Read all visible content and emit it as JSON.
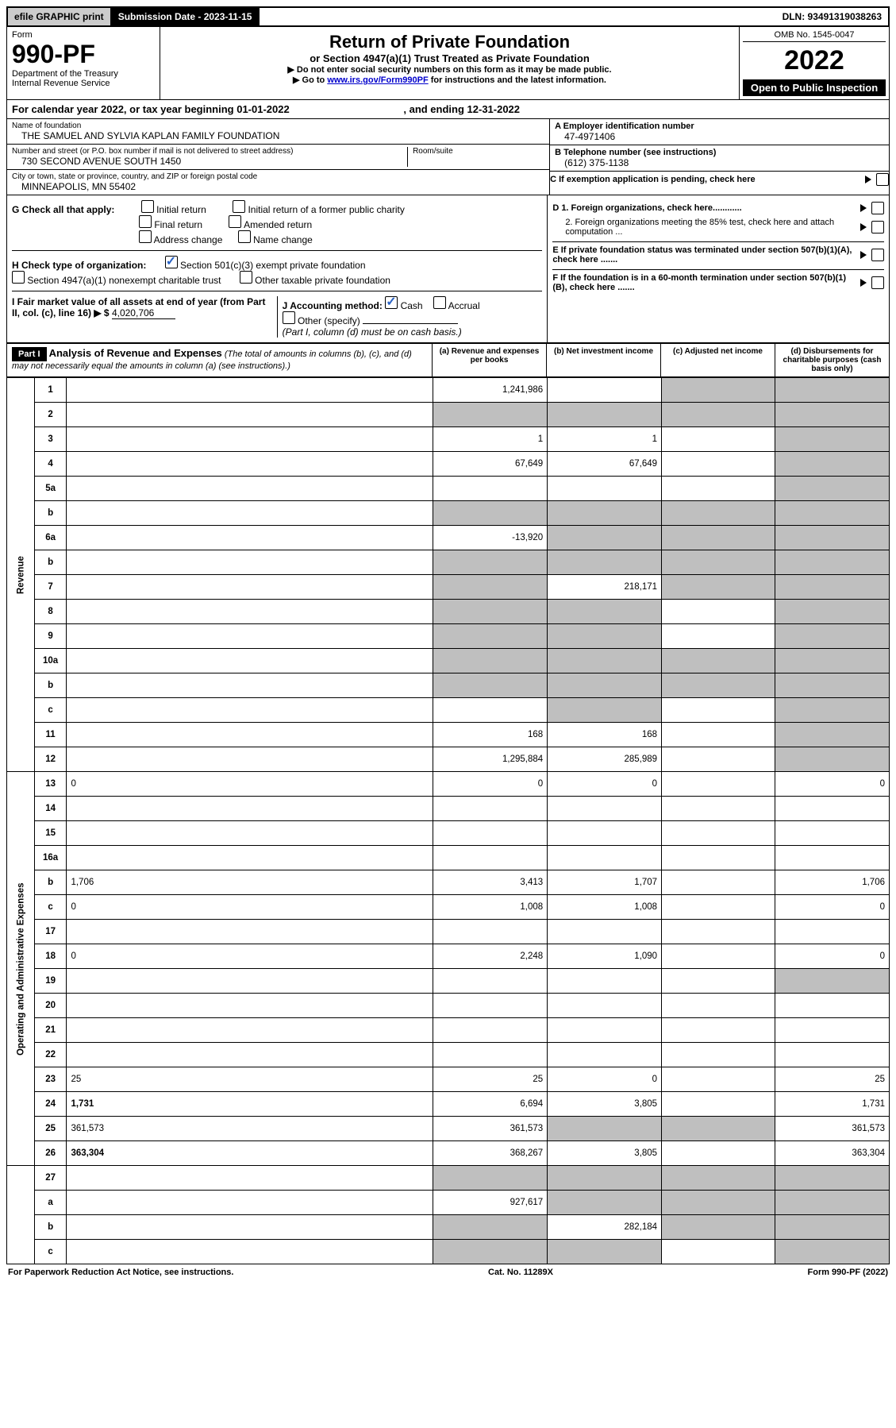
{
  "top": {
    "efile": "efile GRAPHIC print",
    "sub_label": "Submission Date - 2023-11-15",
    "dln": "DLN: 93491319038263"
  },
  "header": {
    "form_word": "Form",
    "form_no": "990-PF",
    "dept": "Department of the Treasury",
    "irs": "Internal Revenue Service",
    "title": "Return of Private Foundation",
    "subtitle": "or Section 4947(a)(1) Trust Treated as Private Foundation",
    "instr1": "▶ Do not enter social security numbers on this form as it may be made public.",
    "instr2_a": "▶ Go to ",
    "instr2_link": "www.irs.gov/Form990PF",
    "instr2_b": " for instructions and the latest information.",
    "omb": "OMB No. 1545-0047",
    "year": "2022",
    "open": "Open to Public Inspection"
  },
  "cal": {
    "text_a": "For calendar year 2022, or tax year beginning 01-01-2022",
    "text_b": ", and ending 12-31-2022"
  },
  "info": {
    "name_lbl": "Name of foundation",
    "name": "THE SAMUEL AND SYLVIA KAPLAN FAMILY FOUNDATION",
    "addr_lbl": "Number and street (or P.O. box number if mail is not delivered to street address)",
    "addr": "730 SECOND AVENUE SOUTH 1450",
    "room_lbl": "Room/suite",
    "city_lbl": "City or town, state or province, country, and ZIP or foreign postal code",
    "city": "MINNEAPOLIS, MN  55402",
    "ein_lbl": "A Employer identification number",
    "ein": "47-4971406",
    "tel_lbl": "B Telephone number (see instructions)",
    "tel": "(612) 375-1138",
    "c_lbl": "C If exemption application is pending, check here",
    "d1": "D 1. Foreign organizations, check here............",
    "d2": "2. Foreign organizations meeting the 85% test, check here and attach computation ...",
    "e_lbl": "E  If private foundation status was terminated under section 507(b)(1)(A), check here .......",
    "f_lbl": "F  If the foundation is in a 60-month termination under section 507(b)(1)(B), check here .......",
    "g_lbl": "G Check all that apply:",
    "g_opts": [
      "Initial return",
      "Initial return of a former public charity",
      "Final return",
      "Amended return",
      "Address change",
      "Name change"
    ],
    "h_lbl": "H Check type of organization:",
    "h1": "Section 501(c)(3) exempt private foundation",
    "h2": "Section 4947(a)(1) nonexempt charitable trust",
    "h3": "Other taxable private foundation",
    "i_lbl": "I Fair market value of all assets at end of year (from Part II, col. (c), line 16) ▶ $",
    "i_val": "4,020,706",
    "j_lbl": "J Accounting method:",
    "j_cash": "Cash",
    "j_acc": "Accrual",
    "j_other": "Other (specify)",
    "j_note": "(Part I, column (d) must be on cash basis.)"
  },
  "part1": {
    "label": "Part I",
    "title": "Analysis of Revenue and Expenses",
    "title_note": " (The total of amounts in columns (b), (c), and (d) may not necessarily equal the amounts in column (a) (see instructions).)",
    "col_a": "(a) Revenue and expenses per books",
    "col_b": "(b) Net investment income",
    "col_c": "(c) Adjusted net income",
    "col_d": "(d) Disbursements for charitable purposes (cash basis only)"
  },
  "side": {
    "rev": "Revenue",
    "exp": "Operating and Administrative Expenses"
  },
  "rows": [
    {
      "n": "1",
      "d": "",
      "a": "1,241,986",
      "b": "",
      "c": "",
      "cs": true,
      "ds": true
    },
    {
      "n": "2",
      "d": "",
      "a": "",
      "b": "",
      "c": "",
      "as": true,
      "bs": true,
      "cs": true,
      "ds": true
    },
    {
      "n": "3",
      "d": "",
      "a": "1",
      "b": "1",
      "c": "",
      "ds": true
    },
    {
      "n": "4",
      "d": "",
      "a": "67,649",
      "b": "67,649",
      "c": "",
      "ds": true
    },
    {
      "n": "5a",
      "d": "",
      "a": "",
      "b": "",
      "c": "",
      "ds": true
    },
    {
      "n": "b",
      "d": "",
      "a": "",
      "b": "",
      "c": "",
      "as": true,
      "bs": true,
      "cs": true,
      "ds": true
    },
    {
      "n": "6a",
      "d": "",
      "a": "-13,920",
      "b": "",
      "c": "",
      "bs": true,
      "cs": true,
      "ds": true
    },
    {
      "n": "b",
      "d": "",
      "a": "",
      "b": "",
      "c": "",
      "as": true,
      "bs": true,
      "cs": true,
      "ds": true
    },
    {
      "n": "7",
      "d": "",
      "a": "",
      "b": "218,171",
      "c": "",
      "as": true,
      "cs": true,
      "ds": true
    },
    {
      "n": "8",
      "d": "",
      "a": "",
      "b": "",
      "c": "",
      "as": true,
      "bs": true,
      "ds": true
    },
    {
      "n": "9",
      "d": "",
      "a": "",
      "b": "",
      "c": "",
      "as": true,
      "bs": true,
      "ds": true
    },
    {
      "n": "10a",
      "d": "",
      "a": "",
      "b": "",
      "c": "",
      "as": true,
      "bs": true,
      "cs": true,
      "ds": true
    },
    {
      "n": "b",
      "d": "",
      "a": "",
      "b": "",
      "c": "",
      "as": true,
      "bs": true,
      "cs": true,
      "ds": true
    },
    {
      "n": "c",
      "d": "",
      "a": "",
      "b": "",
      "c": "",
      "bs": true,
      "ds": true
    },
    {
      "n": "11",
      "d": "",
      "a": "168",
      "b": "168",
      "c": "",
      "ds": true
    },
    {
      "n": "12",
      "d": "",
      "a": "1,295,884",
      "b": "285,989",
      "c": "",
      "bold": true,
      "ds": true
    }
  ],
  "exp_rows": [
    {
      "n": "13",
      "d": "0",
      "a": "0",
      "b": "0",
      "c": ""
    },
    {
      "n": "14",
      "d": "",
      "a": "",
      "b": "",
      "c": ""
    },
    {
      "n": "15",
      "d": "",
      "a": "",
      "b": "",
      "c": ""
    },
    {
      "n": "16a",
      "d": "",
      "a": "",
      "b": "",
      "c": ""
    },
    {
      "n": "b",
      "d": "1,706",
      "a": "3,413",
      "b": "1,707",
      "c": ""
    },
    {
      "n": "c",
      "d": "0",
      "a": "1,008",
      "b": "1,008",
      "c": ""
    },
    {
      "n": "17",
      "d": "",
      "a": "",
      "b": "",
      "c": ""
    },
    {
      "n": "18",
      "d": "0",
      "a": "2,248",
      "b": "1,090",
      "c": ""
    },
    {
      "n": "19",
      "d": "",
      "a": "",
      "b": "",
      "c": "",
      "ds": true
    },
    {
      "n": "20",
      "d": "",
      "a": "",
      "b": "",
      "c": ""
    },
    {
      "n": "21",
      "d": "",
      "a": "",
      "b": "",
      "c": ""
    },
    {
      "n": "22",
      "d": "",
      "a": "",
      "b": "",
      "c": ""
    },
    {
      "n": "23",
      "d": "25",
      "a": "25",
      "b": "0",
      "c": ""
    },
    {
      "n": "24",
      "d": "1,731",
      "a": "6,694",
      "b": "3,805",
      "c": "",
      "bold": true
    },
    {
      "n": "25",
      "d": "361,573",
      "a": "361,573",
      "b": "",
      "c": "",
      "bs": true,
      "cs": true
    },
    {
      "n": "26",
      "d": "363,304",
      "a": "368,267",
      "b": "3,805",
      "c": "",
      "bold": true
    }
  ],
  "final_rows": [
    {
      "n": "27",
      "d": "",
      "a": "",
      "b": "",
      "c": "",
      "as": true,
      "bs": true,
      "cs": true,
      "ds": true
    },
    {
      "n": "a",
      "d": "",
      "a": "927,617",
      "b": "",
      "c": "",
      "bold": true,
      "bs": true,
      "cs": true,
      "ds": true
    },
    {
      "n": "b",
      "d": "",
      "a": "",
      "b": "282,184",
      "c": "",
      "bold": true,
      "as": true,
      "cs": true,
      "ds": true
    },
    {
      "n": "c",
      "d": "",
      "a": "",
      "b": "",
      "c": "",
      "bold": true,
      "as": true,
      "bs": true,
      "ds": true
    }
  ],
  "footer": {
    "left": "For Paperwork Reduction Act Notice, see instructions.",
    "mid": "Cat. No. 11289X",
    "right": "Form 990-PF (2022)"
  }
}
